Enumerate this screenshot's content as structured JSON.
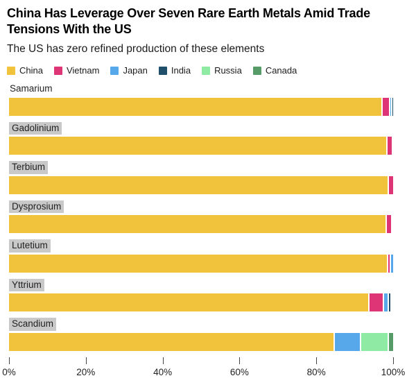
{
  "header": {
    "title_line1": "China Has Leverage Over Seven Rare Earth Metals Amid Trade",
    "title_line2": "Tensions With the US",
    "subtitle": "The US has zero refined production of these elements"
  },
  "colors": {
    "series": {
      "China": "#f1c33d",
      "Vietnam": "#de3577",
      "Japan": "#56a8ea",
      "India": "#1f4f6b",
      "Russia": "#8feba3",
      "Canada": "#579c68"
    },
    "label_highlight_bg": "#c9c9c9",
    "text": "#000000",
    "background": "#ffffff"
  },
  "chart_data": {
    "type": "bar",
    "orientation": "horizontal",
    "stacked": true,
    "title": "China Has Leverage Over Seven Rare Earth Metals Amid Trade Tensions With the US",
    "subtitle": "The US has zero refined production of these elements",
    "xlabel": "",
    "ylabel": "",
    "xlim": [
      0,
      100
    ],
    "x_tick_labels": [
      "0%",
      "20%",
      "40%",
      "60%",
      "80%",
      "100%"
    ],
    "x_tick_values": [
      0,
      20,
      40,
      60,
      80,
      100
    ],
    "grid": false,
    "legend_position": "top",
    "categories": [
      "Samarium",
      "Gadolinium",
      "Terbium",
      "Dysprosium",
      "Lutetium",
      "Yttrium",
      "Scandium"
    ],
    "label_highlight": [
      false,
      true,
      true,
      true,
      true,
      true,
      true
    ],
    "series": [
      {
        "name": "China",
        "values": [
          96.9,
          98.2,
          98.6,
          98.0,
          98.4,
          93.5,
          84.5
        ]
      },
      {
        "name": "Vietnam",
        "values": [
          2.1,
          1.4,
          1.4,
          1.5,
          0.7,
          3.8,
          0
        ]
      },
      {
        "name": "Japan",
        "values": [
          0.5,
          0.4,
          0,
          0.3,
          0.9,
          1.2,
          6.8
        ]
      },
      {
        "name": "India",
        "values": [
          0.5,
          0,
          0,
          0.2,
          0,
          0.8,
          0
        ]
      },
      {
        "name": "Russia",
        "values": [
          0,
          0,
          0,
          0,
          0,
          0,
          7.2
        ]
      },
      {
        "name": "Canada",
        "values": [
          0,
          0,
          0,
          0,
          0,
          0,
          1.5
        ]
      }
    ],
    "units": "percent"
  }
}
